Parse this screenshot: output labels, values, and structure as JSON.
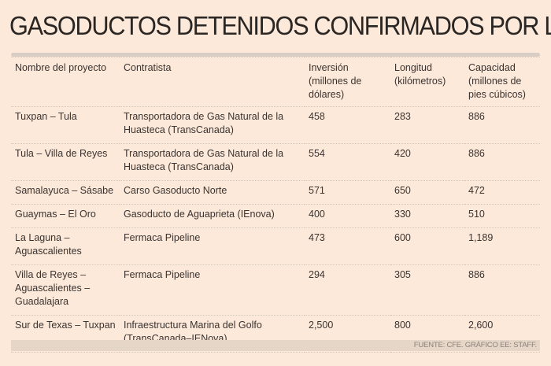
{
  "title": "GASODUCTOS DETENIDOS CONFIRMADOS POR LA CFE:",
  "table": {
    "headers": [
      "Nombre del proyecto",
      "Contratista",
      "Inversión (millones de dólares)",
      "Longitud (kilómetros)",
      "Capacidad (millones de pies cúbicos)"
    ],
    "rows": [
      [
        "Tuxpan – Tula",
        "Transportadora de Gas Natural de la Huasteca (TransCanada)",
        "458",
        "283",
        "886"
      ],
      [
        "Tula – Villa de Reyes",
        "Transportadora de Gas Natural de la Huasteca (TransCanada)",
        "554",
        "420",
        "886"
      ],
      [
        "Samalayuca – Sásabe",
        "Carso Gasoducto Norte",
        "571",
        "650",
        "472"
      ],
      [
        "Guaymas – El Oro",
        "Gasoducto de Aguaprieta (IEnova)",
        "400",
        "330",
        "510"
      ],
      [
        "La Laguna – Aguascalientes",
        "Fermaca Pipeline",
        "473",
        "600",
        "1,189"
      ],
      [
        "Villa de Reyes – Aguascalientes – Guadalajara",
        "Fermaca Pipeline",
        "294",
        "305",
        "886"
      ],
      [
        "Sur de Texas – Tuxpan",
        "Infraestructura Marina del Golfo (TransCanada–IENova)",
        "2,500",
        "800",
        "2,600"
      ]
    ]
  },
  "footer": "FUENTE: CFE. GRÁFICO EE: STAFF."
}
